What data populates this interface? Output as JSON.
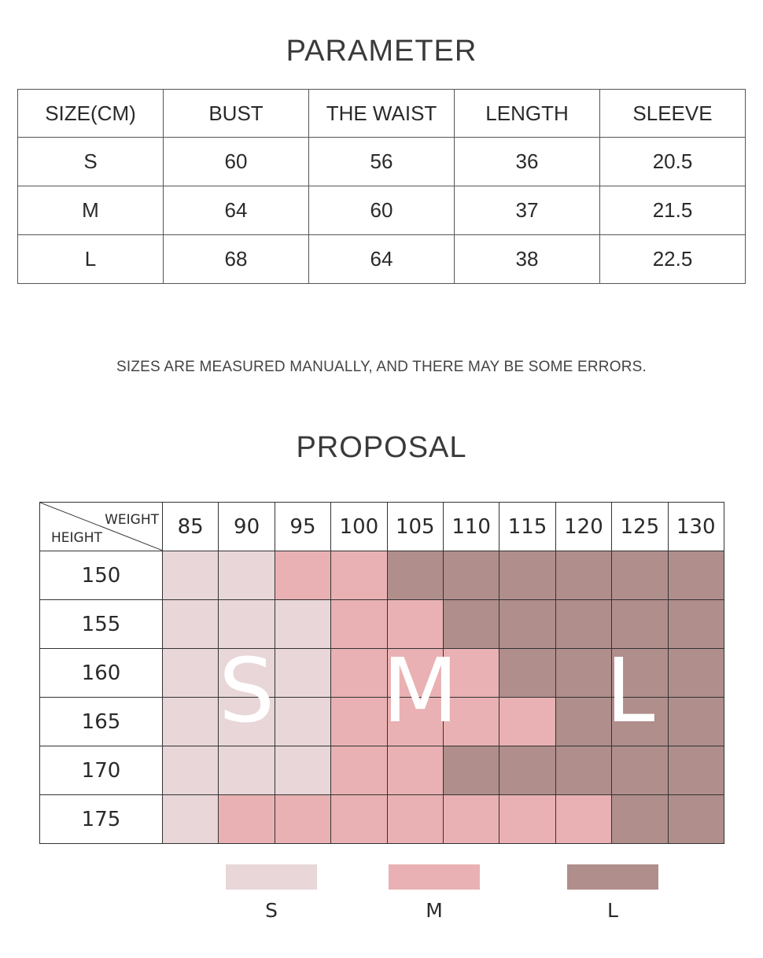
{
  "parameter": {
    "title": "PARAMETER",
    "headers": [
      "SIZE(CM)",
      "BUST",
      "THE WAIST",
      "LENGTH",
      "SLEEVE"
    ],
    "rows": [
      [
        "S",
        "60",
        "56",
        "36",
        "20.5"
      ],
      [
        "M",
        "64",
        "60",
        "37",
        "21.5"
      ],
      [
        "L",
        "68",
        "64",
        "38",
        "22.5"
      ]
    ]
  },
  "note": "SIZES ARE MEASURED MANUALLY, AND THERE MAY BE SOME ERRORS.",
  "proposal": {
    "title": "PROPOSAL",
    "corner_weight_label": "WEIGHT",
    "corner_height_label": "HEIGHT",
    "weights": [
      "85",
      "90",
      "95",
      "100",
      "105",
      "110",
      "115",
      "120",
      "125",
      "130"
    ],
    "heights": [
      "150",
      "155",
      "160",
      "165",
      "170",
      "175"
    ],
    "grid": [
      [
        "S",
        "S",
        "M",
        "M",
        "L",
        "L",
        "L",
        "L",
        "L",
        "L"
      ],
      [
        "S",
        "S",
        "S",
        "M",
        "M",
        "L",
        "L",
        "L",
        "L",
        "L"
      ],
      [
        "S",
        "S",
        "S",
        "M",
        "M",
        "M",
        "L",
        "L",
        "L",
        "L"
      ],
      [
        "S",
        "S",
        "S",
        "M",
        "M",
        "M",
        "M",
        "L",
        "L",
        "L"
      ],
      [
        "S",
        "S",
        "S",
        "M",
        "M",
        "L",
        "L",
        "L",
        "L",
        "L"
      ],
      [
        "S",
        "M",
        "M",
        "M",
        "M",
        "M",
        "M",
        "M",
        "L",
        "L"
      ]
    ],
    "overlay_letters": [
      "S",
      "M",
      "L"
    ]
  },
  "legend": [
    {
      "label": "S",
      "color": "#e8d6d8"
    },
    {
      "label": "M",
      "color": "#e9b1b3"
    },
    {
      "label": "L",
      "color": "#b08e8c"
    }
  ]
}
